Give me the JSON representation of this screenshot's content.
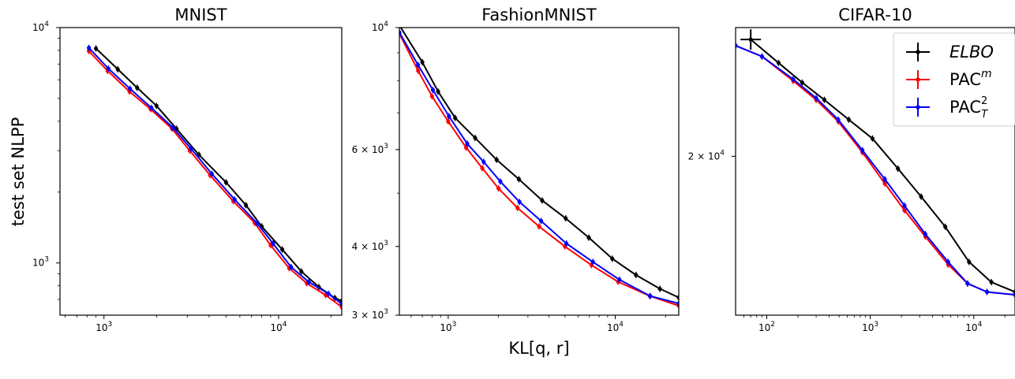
{
  "figure": {
    "shared_xlabel": "KL[q, r]",
    "shared_ylabel": "test set NLPP"
  },
  "legend": {
    "entries": [
      {
        "label": "ELBO",
        "italic": true,
        "color": "#000000"
      },
      {
        "label": "PAC",
        "sup": "m",
        "color": "#ff0000"
      },
      {
        "label": "PAC",
        "sup": "2",
        "sub": "T",
        "color": "#0000ff"
      }
    ],
    "location": "top-right of CIFAR-10 panel"
  },
  "chart_data": [
    {
      "type": "line",
      "title": "MNIST",
      "xscale": "log",
      "yscale": "log",
      "xlim": [
        560,
        23000
      ],
      "ylim": [
        600,
        10000
      ],
      "xticks": [
        {
          "v": 1000,
          "label": "10",
          "exp": "3"
        },
        {
          "v": 10000,
          "label": "10",
          "exp": "4"
        }
      ],
      "yticks": [
        {
          "v": 1000,
          "label": "10",
          "exp": "3"
        },
        {
          "v": 10000,
          "label": "10",
          "exp": "4"
        }
      ],
      "series": [
        {
          "name": "ELBO",
          "color": "#000000",
          "x": [
            900,
            1200,
            1550,
            2000,
            2600,
            3500,
            5000,
            6500,
            8000,
            10500,
            13500,
            17000,
            21000,
            23000
          ],
          "y": [
            8150,
            6650,
            5550,
            4650,
            3720,
            2880,
            2200,
            1760,
            1430,
            1140,
            920,
            790,
            710,
            690
          ]
        },
        {
          "name": "PAC^m",
          "color": "#ff0000",
          "x": [
            820,
            1050,
            1400,
            1850,
            2450,
            3100,
            4050,
            5500,
            7300,
            9000,
            11500,
            14500,
            18600,
            23000
          ],
          "y": [
            7950,
            6550,
            5350,
            4500,
            3720,
            3000,
            2360,
            1830,
            1480,
            1190,
            950,
            820,
            730,
            650
          ]
        },
        {
          "name": "PAC_T^2",
          "color": "#0000ff",
          "x": [
            820,
            1060,
            1410,
            1870,
            2480,
            3150,
            4150,
            5600,
            7500,
            9300,
            11800,
            14900,
            19300,
            23000
          ],
          "y": [
            8200,
            6700,
            5500,
            4560,
            3760,
            3060,
            2390,
            1860,
            1480,
            1210,
            960,
            830,
            740,
            670
          ]
        }
      ]
    },
    {
      "type": "line",
      "title": "FashionMNIST",
      "xscale": "log",
      "yscale": "log",
      "xlim": [
        510,
        24000
      ],
      "ylim": [
        3000,
        10000
      ],
      "xticks": [
        {
          "v": 1000,
          "label": "10",
          "exp": "3"
        },
        {
          "v": 10000,
          "label": "10",
          "exp": "4"
        }
      ],
      "yticks": [
        {
          "v": 3000,
          "label": "3 × 10",
          "exp": "3"
        },
        {
          "v": 4000,
          "label": "4 × 10",
          "exp": "3"
        },
        {
          "v": 6000,
          "label": "6 × 10",
          "exp": "3"
        },
        {
          "v": 10000,
          "label": "10",
          "exp": "4"
        }
      ],
      "series": [
        {
          "name": "ELBO",
          "color": "#000000",
          "x": [
            510,
            700,
            870,
            1100,
            1450,
            1950,
            2650,
            3650,
            5050,
            6950,
            9600,
            13300,
            18500,
            24000
          ],
          "y": [
            10100,
            8650,
            7650,
            6850,
            6300,
            5750,
            5300,
            4850,
            4500,
            4150,
            3800,
            3550,
            3350,
            3230
          ]
        },
        {
          "name": "PAC^m",
          "color": "#ff0000",
          "x": [
            510,
            660,
            800,
            1000,
            1280,
            1600,
            2000,
            2600,
            3500,
            5000,
            7200,
            10400,
            16100,
            24000
          ],
          "y": [
            9750,
            8350,
            7500,
            6750,
            6050,
            5550,
            5100,
            4700,
            4350,
            4000,
            3700,
            3450,
            3250,
            3120
          ]
        },
        {
          "name": "PAC_T^2",
          "color": "#0000ff",
          "x": [
            510,
            660,
            810,
            1010,
            1300,
            1630,
            2050,
            2670,
            3600,
            5100,
            7350,
            10600,
            16200,
            24000
          ],
          "y": [
            9800,
            8550,
            7700,
            6900,
            6150,
            5700,
            5250,
            4820,
            4450,
            4050,
            3750,
            3480,
            3250,
            3150
          ]
        }
      ]
    },
    {
      "type": "line",
      "title": "CIFAR-10",
      "xscale": "log",
      "yscale": "log",
      "xlim": [
        50,
        25000
      ],
      "ylim": [
        13500,
        27500
      ],
      "xticks": [
        {
          "v": 100,
          "label": "10",
          "exp": "2"
        },
        {
          "v": 1000,
          "label": "10",
          "exp": "3"
        },
        {
          "v": 10000,
          "label": "10",
          "exp": "4"
        }
      ],
      "yticks": [
        {
          "v": 20000,
          "label": "2 × 10",
          "exp": "4"
        }
      ],
      "series": [
        {
          "name": "ELBO",
          "color": "#000000",
          "x": [
            70,
            130,
            220,
            360,
            620,
            1050,
            1850,
            3100,
            5300,
            9000,
            14800,
            25000
          ],
          "y": [
            26700,
            25200,
            24000,
            23000,
            21900,
            20900,
            19400,
            18100,
            16800,
            15400,
            14650,
            14300
          ]
        },
        {
          "name": "PAC^m",
          "color": "#ff0000",
          "x": [
            50,
            90,
            180,
            300,
            490,
            840,
            1380,
            2140,
            3400,
            5650,
            8700,
            13400,
            25000
          ],
          "y": [
            26300,
            25600,
            24100,
            23000,
            21800,
            20200,
            18700,
            17500,
            16400,
            15300,
            14600,
            14300,
            14200
          ]
        },
        {
          "name": "PAC_T^2",
          "color": "#0000ff",
          "x": [
            50,
            90,
            180,
            300,
            490,
            840,
            1380,
            2140,
            3400,
            5650,
            8700,
            13400,
            25000
          ],
          "y": [
            26300,
            25600,
            24200,
            23100,
            21900,
            20300,
            18900,
            17700,
            16500,
            15400,
            14600,
            14300,
            14200
          ]
        }
      ]
    }
  ]
}
